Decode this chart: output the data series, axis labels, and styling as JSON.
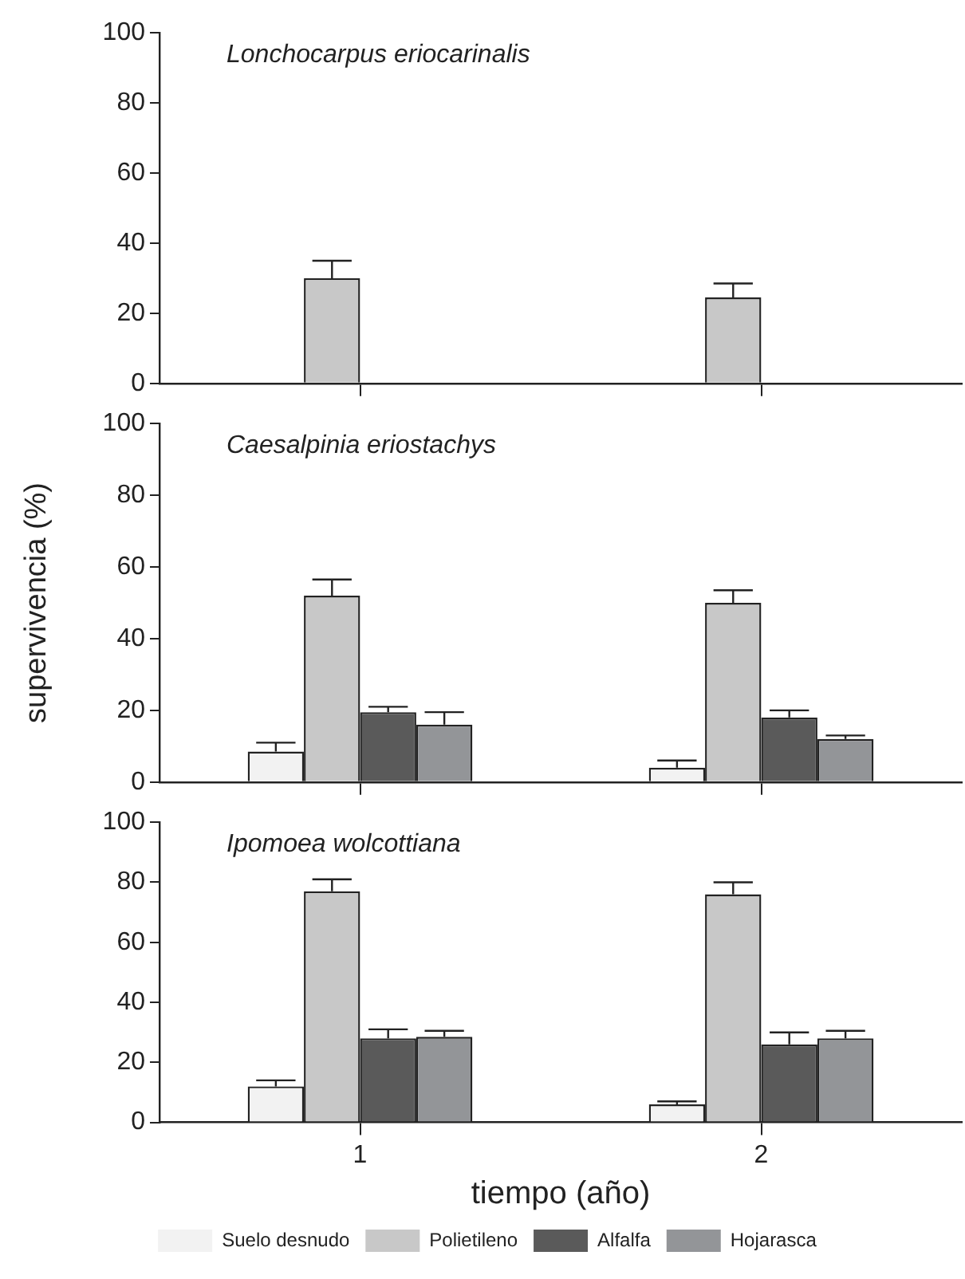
{
  "chart_data": [
    {
      "type": "bar",
      "annotations": [
        "Lonchocarpus eriocarinalis"
      ],
      "categories": [
        "1",
        "2"
      ],
      "series": [
        {
          "color": "#f2f2f2",
          "values": [
            null,
            null
          ]
        },
        {
          "color": "#c8c8c8",
          "values": [
            30,
            24.5
          ],
          "errors": [
            [
              30,
              35
            ],
            [
              24.5,
              28.5
            ]
          ]
        },
        {
          "color": "#5a5a5a",
          "values": [
            null,
            null
          ]
        },
        {
          "color": "#939598",
          "values": [
            null,
            null
          ]
        }
      ],
      "ylim": [
        0,
        100
      ],
      "yticks": [
        0,
        20,
        40,
        60,
        80,
        100
      ],
      "grid": false,
      "legend": false,
      "tick_labels": "y"
    },
    {
      "type": "bar",
      "annotations": [
        "Caesalpinia eriostachys"
      ],
      "ylabel": "supervivencia (%)",
      "categories": [
        "1",
        "2"
      ],
      "series": [
        {
          "color": "#f2f2f2",
          "values": [
            8.5,
            4
          ],
          "errors": [
            [
              8.5,
              11
            ],
            [
              4,
              6
            ]
          ]
        },
        {
          "color": "#c8c8c8",
          "values": [
            52,
            50
          ],
          "errors": [
            [
              52,
              56.5
            ],
            [
              50,
              53.5
            ]
          ]
        },
        {
          "color": "#5a5a5a",
          "values": [
            19.5,
            18
          ],
          "errors": [
            [
              19.5,
              21
            ],
            [
              18,
              20
            ]
          ]
        },
        {
          "color": "#939598",
          "values": [
            16,
            12
          ],
          "errors": [
            [
              16,
              19.5
            ],
            [
              12,
              13
            ]
          ]
        }
      ],
      "ylim": [
        0,
        100
      ],
      "yticks": [
        0,
        20,
        40,
        60,
        80,
        100
      ],
      "grid": false,
      "legend": false,
      "tick_labels": "y"
    },
    {
      "type": "bar",
      "annotations": [
        "Ipomoea wolcottiana"
      ],
      "xlabel": "tiempo (año)",
      "categories": [
        "1",
        "2"
      ],
      "series": [
        {
          "name": "Suelo desnudo",
          "color": "#f2f2f2",
          "values": [
            12,
            6
          ],
          "errors": [
            [
              12,
              14
            ],
            [
              6,
              7
            ]
          ]
        },
        {
          "name": "Polietileno",
          "color": "#c8c8c8",
          "values": [
            77,
            76
          ],
          "errors": [
            [
              77,
              81
            ],
            [
              76,
              80
            ]
          ]
        },
        {
          "name": "Alfalfa",
          "color": "#5a5a5a",
          "values": [
            28,
            26
          ],
          "errors": [
            [
              28,
              31
            ],
            [
              26,
              30
            ]
          ]
        },
        {
          "name": "Hojarasca",
          "color": "#939598",
          "values": [
            28.5,
            28
          ],
          "errors": [
            [
              28.5,
              30.5
            ],
            [
              28,
              30.5
            ]
          ]
        }
      ],
      "ylim": [
        0,
        100
      ],
      "yticks": [
        0,
        20,
        40,
        60,
        80,
        100
      ],
      "grid": false,
      "legend": "bottom"
    }
  ]
}
